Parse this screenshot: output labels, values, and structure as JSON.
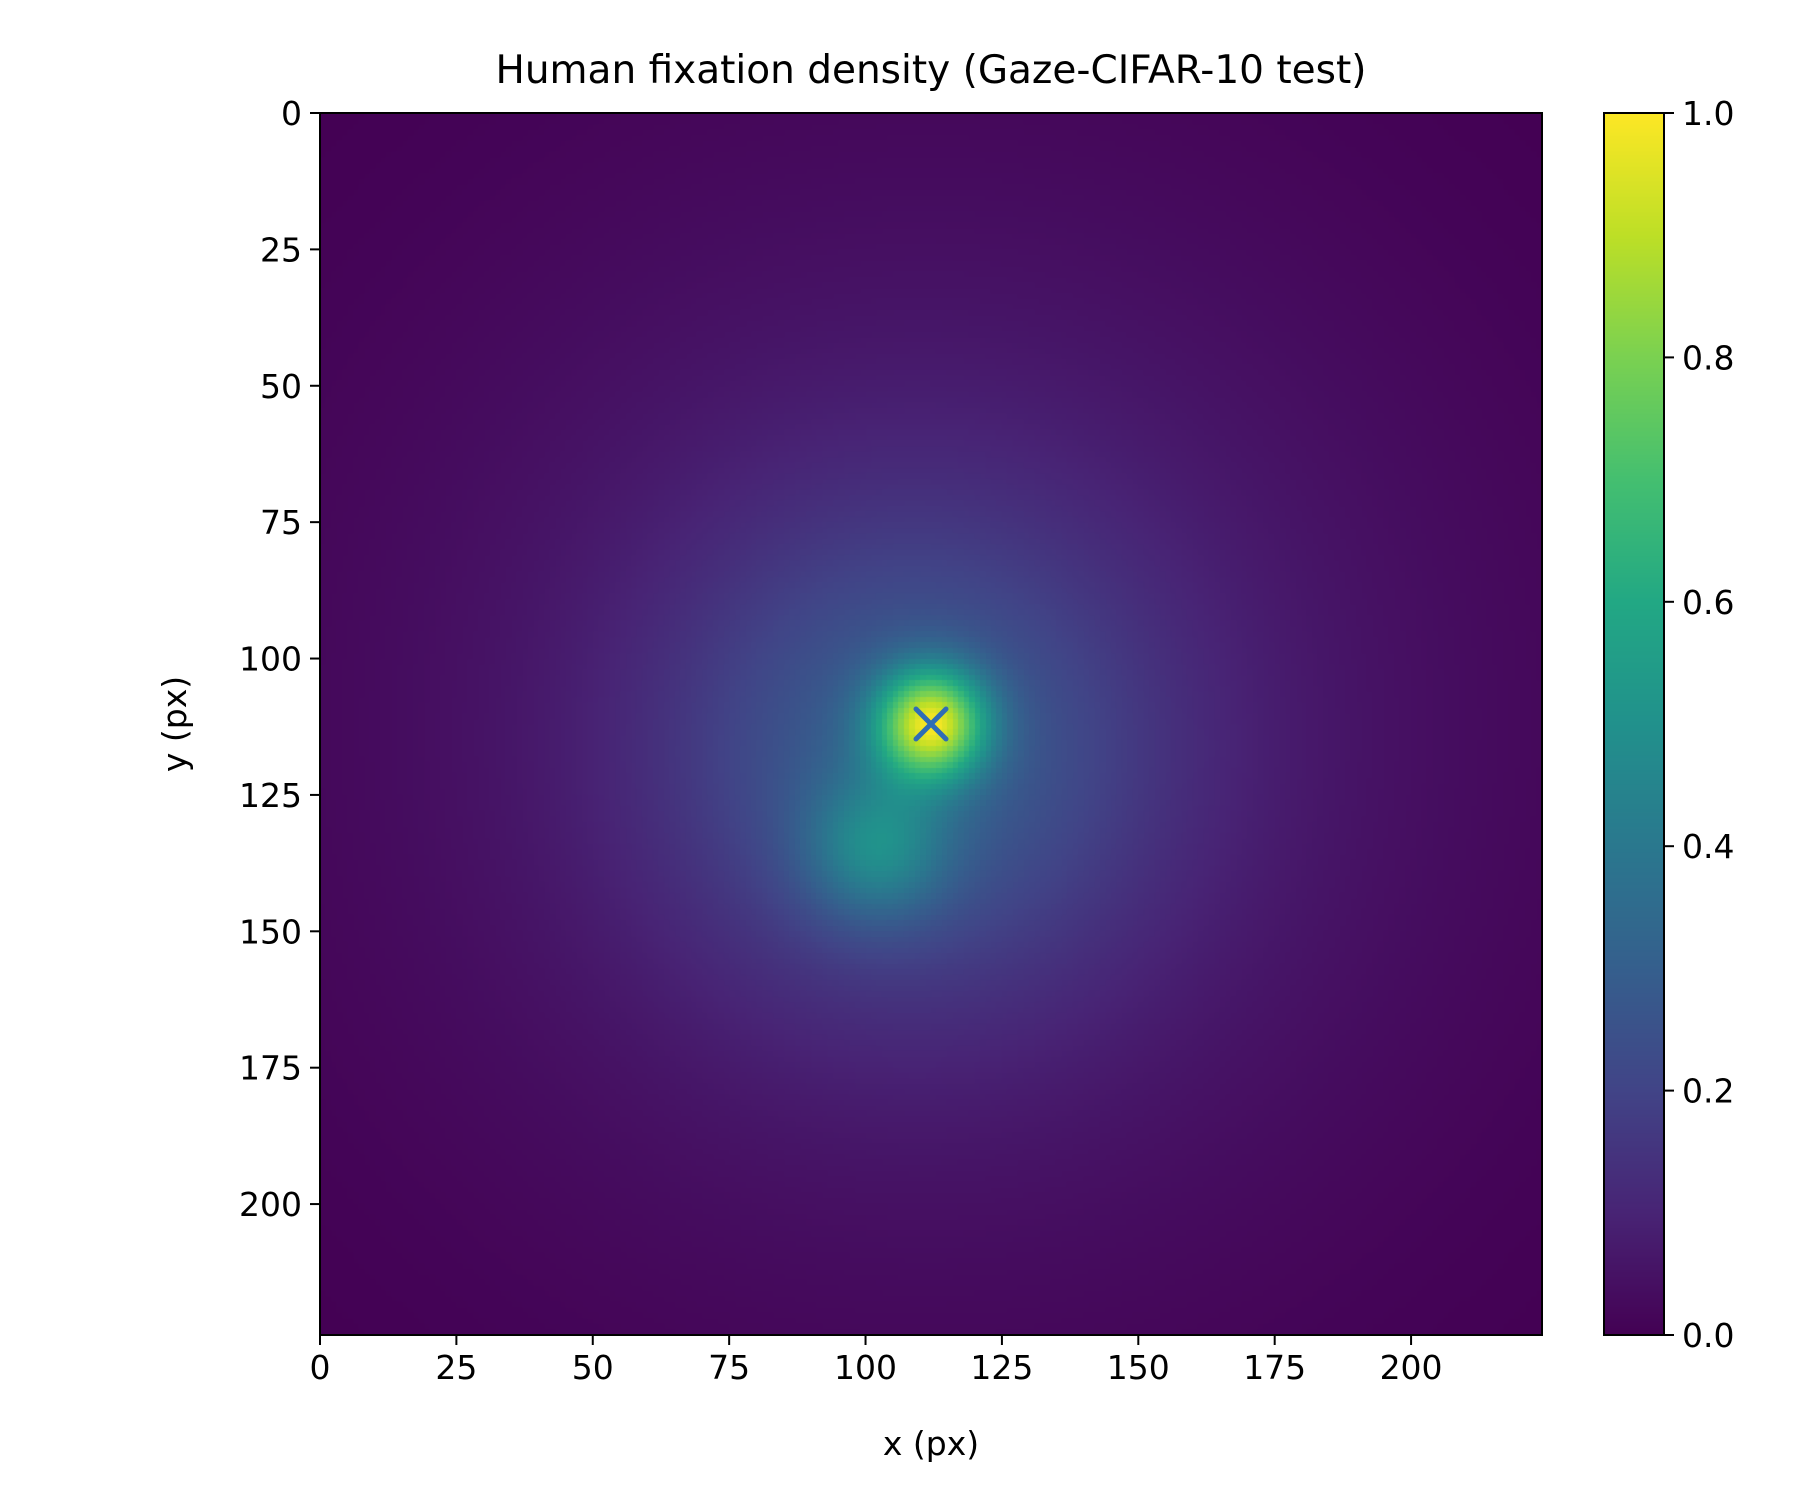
{
  "chart_data": {
    "type": "heatmap",
    "title": "Human fixation density (Gaze-CIFAR-10 test)",
    "xlabel": "x (px)",
    "ylabel": "y (px)",
    "xlim": [
      0,
      224
    ],
    "ylim": [
      224,
      0
    ],
    "x_ticks": [
      0,
      25,
      50,
      75,
      100,
      125,
      150,
      175,
      200
    ],
    "y_ticks": [
      0,
      25,
      50,
      75,
      100,
      125,
      150,
      175,
      200
    ],
    "colormap": "viridis",
    "colorbar": {
      "range": [
        0.0,
        1.0
      ],
      "ticks": [
        "0.0",
        "0.2",
        "0.4",
        "0.6",
        "0.8",
        "1.0"
      ]
    },
    "density_components": [
      {
        "cx": 112,
        "cy": 112,
        "sigma": 70,
        "amplitude": 0.1
      },
      {
        "cx": 108,
        "cy": 118,
        "sigma": 30,
        "amplitude": 0.2
      },
      {
        "cx": 112,
        "cy": 112,
        "sigma": 7,
        "amplitude": 0.65
      },
      {
        "cx": 102,
        "cy": 135,
        "sigma": 9,
        "amplitude": 0.22
      }
    ],
    "peak_marker": {
      "x": 112,
      "y": 112,
      "symbol": "x",
      "color": "#2f6db5"
    }
  }
}
